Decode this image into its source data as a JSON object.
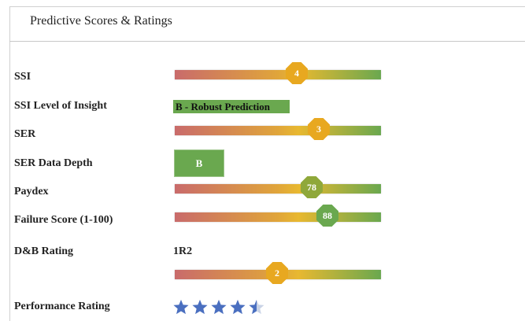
{
  "title": "Predictive Scores & Ratings",
  "rows": [
    {
      "label": "SSI",
      "gauge": 4
    },
    {
      "label": "SSI Level of Insight",
      "badge": "B - Robust Prediction"
    },
    {
      "label": "SER",
      "gauge": 3
    },
    {
      "label": "SER Data Depth",
      "badge": "B"
    },
    {
      "label": "Paydex",
      "gauge": 78
    },
    {
      "label": "Failure Score (1-100)",
      "gauge": 88
    },
    {
      "label": "D&B Rating",
      "text": "1R2"
    },
    {
      "gauge": 2
    },
    {
      "label": "Performance Rating",
      "stars": 4.5
    }
  ]
}
